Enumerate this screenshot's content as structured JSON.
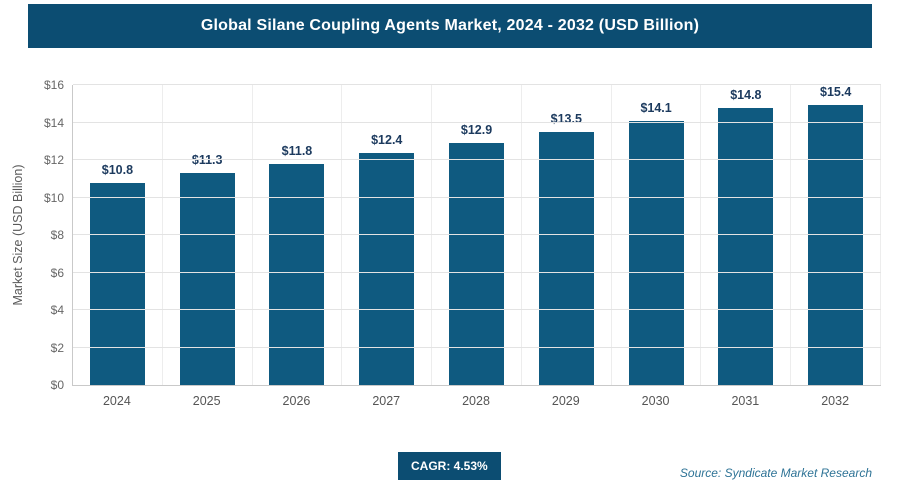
{
  "header": {
    "title": "Global Silane Coupling Agents Market, 2024 - 2032 (USD Billion)"
  },
  "chart_data": {
    "type": "bar",
    "title": "Global Silane Coupling Agents Market, 2024 - 2032 (USD Billion)",
    "categories": [
      "2024",
      "2025",
      "2026",
      "2027",
      "2028",
      "2029",
      "2030",
      "2031",
      "2032"
    ],
    "values": [
      10.8,
      11.3,
      11.8,
      12.4,
      12.9,
      13.5,
      14.1,
      14.8,
      15.4
    ],
    "value_labels": [
      "$10.8",
      "$11.3",
      "$11.8",
      "$12.4",
      "$12.9",
      "$13.5",
      "$14.1",
      "$14.8",
      "$15.4"
    ],
    "xlabel": "",
    "ylabel": "Market Size (USD Billion)",
    "ylim": [
      0,
      16
    ],
    "ytick_step": 2,
    "ytick_labels": [
      "$0",
      "$2",
      "$4",
      "$6",
      "$8",
      "$10",
      "$12",
      "$14",
      "$16"
    ],
    "grid": "horizontal",
    "legend": "none",
    "bar_color": "#0f5a80"
  },
  "footer": {
    "cagr_label": "CAGR: 4.53%",
    "source": "Source: Syndicate Market Research"
  },
  "colors": {
    "header_bg": "#0c4d72",
    "bar": "#0f5a80",
    "badge_bg": "#0c4d72",
    "value_label": "#1c3a5e",
    "source_text": "#2e7396"
  }
}
